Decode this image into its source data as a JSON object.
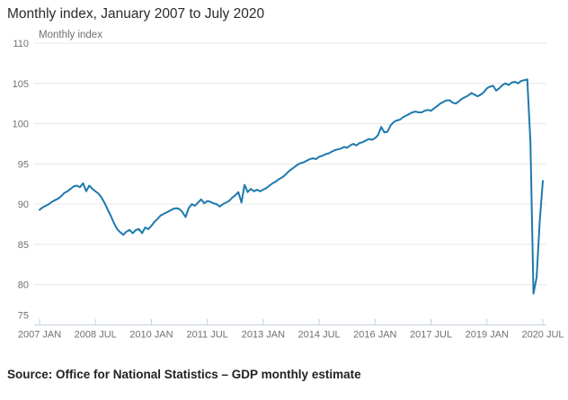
{
  "header": {
    "title": "Monthly index, January 2007 to July 2020"
  },
  "source": {
    "text": "Source: Office for National Statistics – GDP monthly estimate"
  },
  "colors": {
    "line": "#1e7aad",
    "grid": "#e7e7e7",
    "axis": "#c3d0de",
    "tick_text": "#707070",
    "title_text": "#2b2b2b"
  },
  "chart_data": {
    "type": "line",
    "title": "Monthly index, January 2007 to July 2020",
    "y_axis_title": "Monthly index",
    "xlabel": "",
    "ylabel": "Monthly index",
    "x_start": "2007-01",
    "x_end": "2020-07",
    "frequency": "monthly",
    "ylim": [
      75,
      110
    ],
    "y_ticks": [
      110,
      105,
      100,
      95,
      90,
      85,
      80,
      75
    ],
    "x_tick_labels": [
      "2007 JAN",
      "2008 JUL",
      "2010 JAN",
      "2011 JUL",
      "2013 JAN",
      "2014 JUL",
      "2016 JAN",
      "2017 JUL",
      "2019 JAN",
      "2020 JUL"
    ],
    "grid": "horizontal-only",
    "legend": "none",
    "series": [
      {
        "name": "GDP monthly index",
        "values": [
          89.3,
          89.6,
          89.8,
          90.0,
          90.3,
          90.5,
          90.7,
          91.0,
          91.4,
          91.6,
          91.9,
          92.2,
          92.3,
          92.1,
          92.6,
          91.6,
          92.3,
          91.9,
          91.6,
          91.3,
          90.8,
          90.1,
          89.3,
          88.5,
          87.6,
          86.9,
          86.5,
          86.2,
          86.6,
          86.8,
          86.4,
          86.8,
          86.9,
          86.4,
          87.1,
          86.9,
          87.3,
          87.8,
          88.2,
          88.6,
          88.8,
          89.0,
          89.2,
          89.4,
          89.5,
          89.4,
          89.0,
          88.4,
          89.5,
          90.0,
          89.8,
          90.2,
          90.6,
          90.1,
          90.4,
          90.3,
          90.1,
          90.0,
          89.7,
          90.0,
          90.2,
          90.4,
          90.8,
          91.1,
          91.5,
          90.2,
          92.4,
          91.5,
          91.9,
          91.6,
          91.8,
          91.6,
          91.8,
          92.0,
          92.3,
          92.6,
          92.8,
          93.1,
          93.3,
          93.6,
          94.0,
          94.3,
          94.6,
          94.9,
          95.1,
          95.2,
          95.4,
          95.6,
          95.7,
          95.6,
          95.9,
          96.0,
          96.2,
          96.3,
          96.5,
          96.7,
          96.8,
          96.9,
          97.1,
          97.0,
          97.3,
          97.5,
          97.3,
          97.6,
          97.7,
          97.9,
          98.1,
          98.0,
          98.2,
          98.6,
          99.6,
          98.9,
          99.0,
          99.8,
          100.2,
          100.4,
          100.5,
          100.8,
          101.0,
          101.2,
          101.4,
          101.5,
          101.4,
          101.4,
          101.6,
          101.7,
          101.6,
          101.9,
          102.2,
          102.5,
          102.7,
          102.9,
          102.9,
          102.6,
          102.5,
          102.8,
          103.1,
          103.3,
          103.5,
          103.8,
          103.6,
          103.4,
          103.6,
          103.9,
          104.4,
          104.6,
          104.7,
          104.1,
          104.4,
          104.8,
          105.0,
          104.8,
          105.1,
          105.2,
          105.0,
          105.3,
          105.4,
          105.5,
          97.7,
          78.9,
          80.9,
          87.8,
          92.9
        ]
      }
    ]
  }
}
